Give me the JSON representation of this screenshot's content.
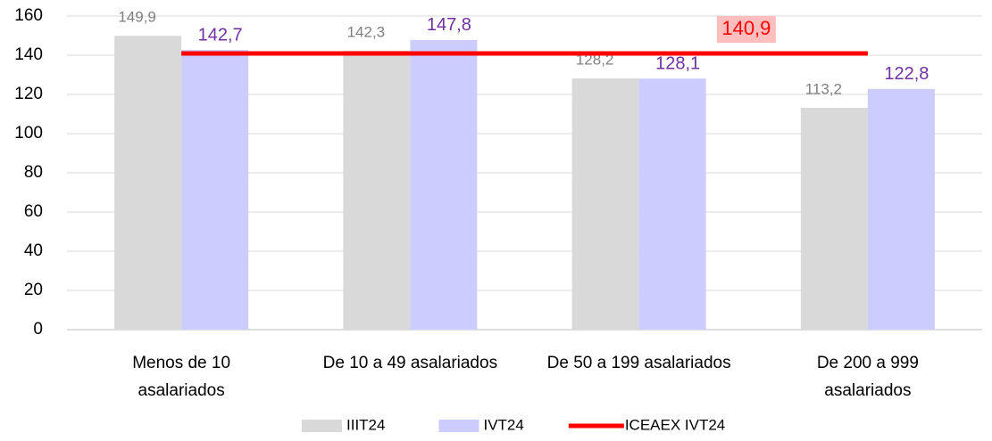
{
  "chart_data": {
    "type": "bar",
    "categories": [
      "Menos de 10\nasalariados",
      "De 10 a 49 asalariados",
      "De 50 a 199 asalariados",
      "De 200 a 999\nasalariados"
    ],
    "series": [
      {
        "name": "IIIT24",
        "color": "#d9d9d9",
        "label_color": "#7f7f7f",
        "values": [
          149.9,
          142.3,
          128.2,
          113.2
        ],
        "value_labels": [
          "149,9",
          "142,3",
          "128,2",
          "113,2"
        ]
      },
      {
        "name": "IVT24",
        "color": "#ccccff",
        "label_color": "#7030a0",
        "values": [
          142.7,
          147.8,
          128.1,
          122.8
        ],
        "value_labels": [
          "142,7",
          "147,8",
          "128,1",
          "122,8"
        ]
      },
      {
        "name": "ICEAEX IVT24",
        "type": "line",
        "color": "#ff0000",
        "label_color": "#ff0000",
        "values": [
          140.9,
          140.9,
          140.9,
          140.9
        ],
        "value_labels": [
          null,
          null,
          null,
          "140,9"
        ]
      }
    ],
    "ylim": [
      0,
      160
    ],
    "yticks": [
      0,
      20,
      40,
      60,
      80,
      100,
      120,
      140,
      160
    ],
    "grid": true,
    "legend": "bottom"
  }
}
